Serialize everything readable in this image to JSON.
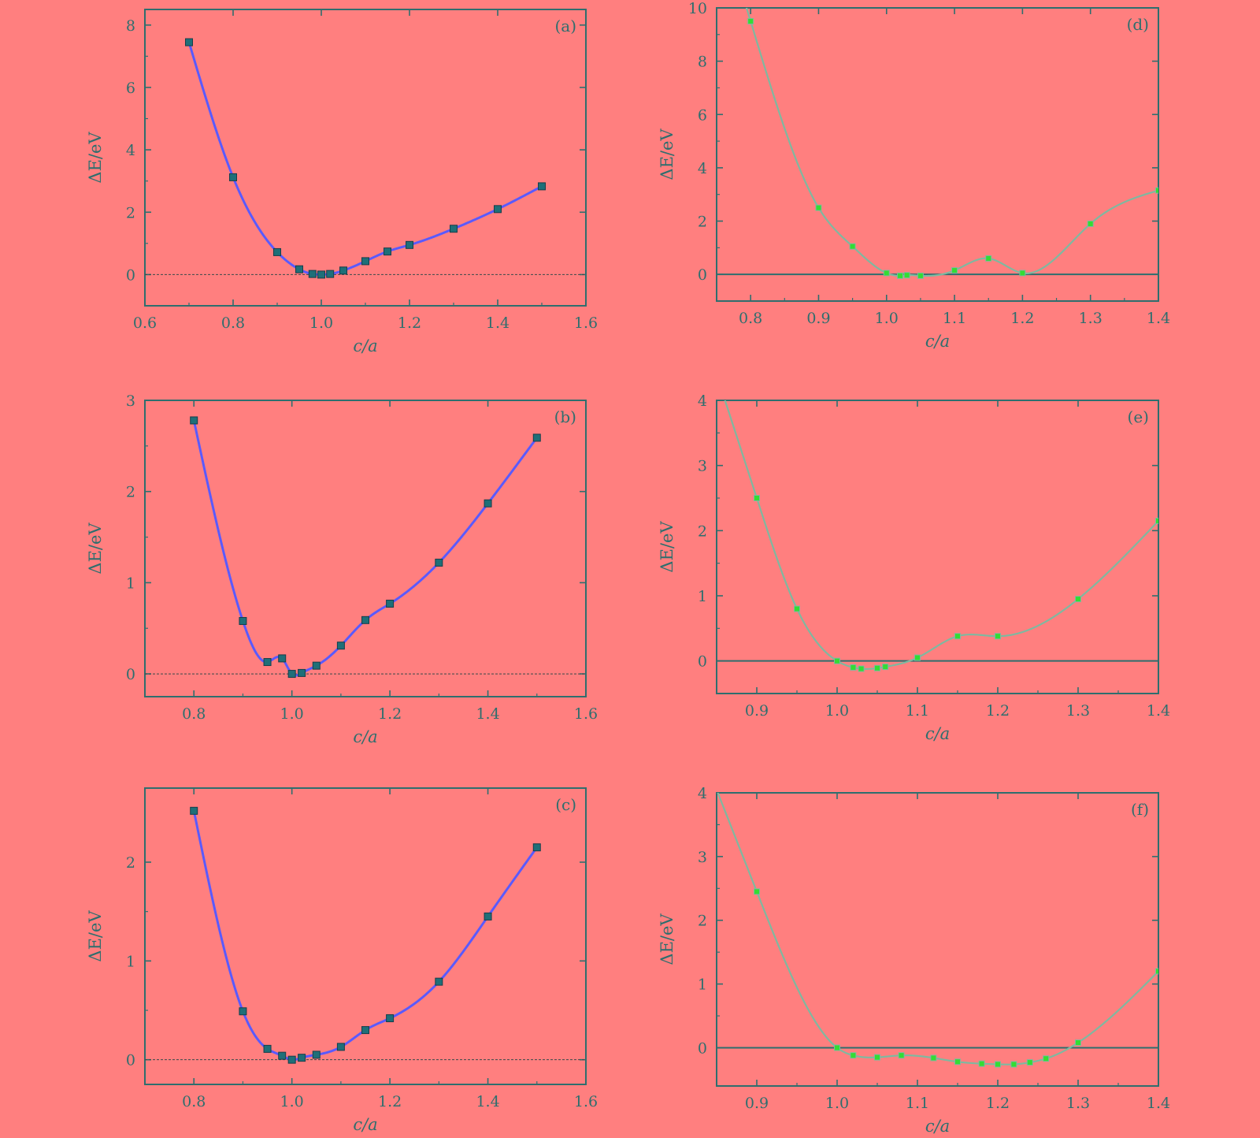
{
  "colors": {
    "background": "#ff7f7f",
    "axis": "#2e6e6e",
    "fit_left": "#5a5aff",
    "marker_left": "#1f6f78",
    "fit_right": "#7fb8a0",
    "marker_right": "#33dd33"
  },
  "chart_data": [
    {
      "id": "a",
      "type": "scatter",
      "panel_label": "(a)",
      "xlabel": "c/a",
      "ylabel": "ΔE/eV",
      "xlim": [
        0.6,
        1.6
      ],
      "ylim": [
        -1,
        8.5
      ],
      "xticks": [
        "0.6",
        "0.8",
        "1.0",
        "1.2",
        "1.4",
        "1.6"
      ],
      "yticks": [
        "0",
        "2",
        "4",
        "6",
        "8"
      ],
      "zero_line": "dashed",
      "series": [
        {
          "x": [
            0.7,
            0.8,
            0.9,
            0.95,
            0.98,
            1.0,
            1.02,
            1.05,
            1.1,
            1.15,
            1.2,
            1.3,
            1.4,
            1.5
          ],
          "y": [
            7.45,
            3.12,
            0.72,
            0.17,
            0.02,
            0.0,
            0.02,
            0.13,
            0.43,
            0.74,
            0.95,
            1.47,
            2.1,
            2.83
          ]
        }
      ]
    },
    {
      "id": "b",
      "type": "scatter",
      "panel_label": "(b)",
      "xlabel": "c/a",
      "ylabel": "ΔE/eV",
      "xlim": [
        0.7,
        1.6
      ],
      "ylim": [
        -0.25,
        3.0
      ],
      "xticks": [
        "0.8",
        "1.0",
        "1.2",
        "1.4",
        "1.6"
      ],
      "yticks": [
        "0",
        "1",
        "2",
        "3"
      ],
      "zero_line": "dashed",
      "series": [
        {
          "x": [
            0.8,
            0.9,
            0.95,
            0.98,
            1.0,
            1.02,
            1.05,
            1.1,
            1.15,
            1.2,
            1.3,
            1.4,
            1.5
          ],
          "y": [
            2.78,
            0.58,
            0.13,
            0.17,
            0.0,
            0.01,
            0.09,
            0.31,
            0.59,
            0.77,
            1.22,
            1.87,
            2.59
          ]
        }
      ]
    },
    {
      "id": "c",
      "type": "scatter",
      "panel_label": "(c)",
      "xlabel": "c/a",
      "ylabel": "ΔE/eV",
      "xlim": [
        0.7,
        1.6
      ],
      "ylim": [
        -0.25,
        2.75
      ],
      "xticks": [
        "0.8",
        "1.0",
        "1.2",
        "1.4",
        "1.6"
      ],
      "yticks": [
        "0",
        "1",
        "2"
      ],
      "zero_line": "dashed",
      "series": [
        {
          "x": [
            0.8,
            0.9,
            0.95,
            0.98,
            1.0,
            1.02,
            1.05,
            1.1,
            1.15,
            1.2,
            1.3,
            1.4,
            1.5
          ],
          "y": [
            2.52,
            0.49,
            0.11,
            0.04,
            0.0,
            0.02,
            0.05,
            0.13,
            0.3,
            0.42,
            0.79,
            1.45,
            2.15
          ]
        }
      ]
    },
    {
      "id": "d",
      "type": "scatter",
      "panel_label": "(d)",
      "xlabel": "c/a",
      "ylabel": "ΔE/eV",
      "xlim": [
        0.75,
        1.4
      ],
      "ylim": [
        -1,
        10
      ],
      "xticks": [
        "0.8",
        "0.9",
        "1.0",
        "1.1",
        "1.2",
        "1.3",
        "1.4"
      ],
      "yticks": [
        "0",
        "2",
        "4",
        "6",
        "8",
        "10"
      ],
      "zero_line": "solid",
      "series": [
        {
          "x": [
            0.8,
            0.9,
            0.95,
            1.0,
            1.02,
            1.03,
            1.05,
            1.1,
            1.15,
            1.2,
            1.3,
            1.4
          ],
          "y": [
            9.5,
            2.5,
            1.05,
            0.05,
            -0.05,
            -0.03,
            -0.05,
            0.15,
            0.6,
            0.05,
            1.9,
            3.15
          ]
        }
      ]
    },
    {
      "id": "e",
      "type": "scatter",
      "panel_label": "(e)",
      "xlabel": "c/a",
      "ylabel": "ΔE/eV",
      "xlim": [
        0.85,
        1.4
      ],
      "ylim": [
        -0.5,
        4
      ],
      "xticks": [
        "0.9",
        "1.0",
        "1.1",
        "1.2",
        "1.3",
        "1.4"
      ],
      "yticks": [
        "0",
        "1",
        "2",
        "3",
        "4"
      ],
      "zero_line": "solid",
      "series": [
        {
          "x": [
            0.9,
            0.95,
            1.0,
            1.02,
            1.03,
            1.05,
            1.06,
            1.1,
            1.15,
            1.2,
            1.3,
            1.4
          ],
          "y": [
            2.5,
            0.8,
            0.0,
            -0.1,
            -0.12,
            -0.11,
            -0.09,
            0.05,
            0.38,
            0.38,
            0.95,
            2.15
          ]
        }
      ]
    },
    {
      "id": "f",
      "type": "scatter",
      "panel_label": "(f)",
      "xlabel": "c/a",
      "ylabel": "ΔE/eV",
      "xlim": [
        0.85,
        1.4
      ],
      "ylim": [
        -0.6,
        4
      ],
      "xticks": [
        "0.9",
        "1.0",
        "1.1",
        "1.2",
        "1.3",
        "1.4"
      ],
      "yticks": [
        "0",
        "1",
        "2",
        "3",
        "4"
      ],
      "zero_line": "solid",
      "series": [
        {
          "x": [
            0.9,
            1.0,
            1.02,
            1.05,
            1.08,
            1.12,
            1.15,
            1.18,
            1.2,
            1.22,
            1.24,
            1.26,
            1.3,
            1.4
          ],
          "y": [
            2.45,
            0.0,
            -0.12,
            -0.15,
            -0.12,
            -0.16,
            -0.22,
            -0.25,
            -0.26,
            -0.26,
            -0.23,
            -0.17,
            0.08,
            1.2
          ]
        }
      ]
    }
  ]
}
